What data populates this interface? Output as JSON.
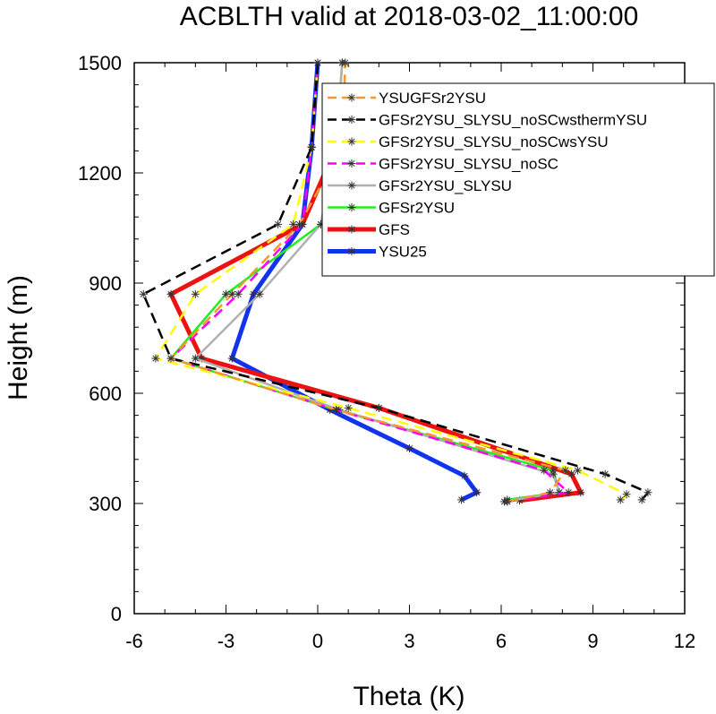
{
  "chart_data": {
    "type": "line",
    "title": "ACBLTH valid at 2018-03-02_11:00:00",
    "xlabel": "Theta (K)",
    "ylabel": "Height (m)",
    "xlim": [
      -6,
      12
    ],
    "ylim": [
      0,
      1500
    ],
    "xticks": [
      "-6",
      "-3",
      "0",
      "3",
      "6",
      "9",
      "12"
    ],
    "yticks": [
      "0",
      "300",
      "600",
      "900",
      "1200",
      "1500"
    ],
    "legend_position": "top-right",
    "marker": "asterisk",
    "series": [
      {
        "name": "YSUGFSr2YSU",
        "color": "#f29a2e",
        "dash": "dashed",
        "width": 2.5,
        "x": [
          6.2,
          7.6,
          8.1,
          0.6,
          -4.8,
          -2.8,
          -0.6,
          0.8,
          0.9
        ],
        "y": [
          305,
          330,
          390,
          555,
          695,
          870,
          1060,
          1270,
          1500
        ]
      },
      {
        "name": "GFSr2YSU_SLYSU_noSCwsthermYSU",
        "color": "#000000",
        "dash": "dashed",
        "width": 2.5,
        "x": [
          10.6,
          10.8,
          9.4,
          2.0,
          -4.8,
          -5.7,
          -1.3,
          -0.2,
          0.0
        ],
        "y": [
          310,
          330,
          380,
          560,
          695,
          870,
          1060,
          1270,
          1500
        ]
      },
      {
        "name": "GFSr2YSU_SLYSU_noSCwsYSU",
        "color": "#ffff00",
        "dash": "dashed",
        "width": 2.5,
        "x": [
          9.9,
          10.1,
          8.5,
          1.0,
          -5.3,
          -4.0,
          -0.8,
          -0.2,
          0.0
        ],
        "y": [
          310,
          325,
          390,
          560,
          695,
          870,
          1060,
          1270,
          1500
        ]
      },
      {
        "name": "GFSr2YSU_SLYSU_noSC",
        "color": "#ff00ff",
        "dash": "dashed",
        "width": 2.5,
        "x": [
          6.2,
          8.2,
          7.4,
          0.6,
          -4.8,
          -2.6,
          -0.5,
          -0.2,
          0.0
        ],
        "y": [
          305,
          330,
          390,
          555,
          695,
          870,
          1060,
          1270,
          1500
        ]
      },
      {
        "name": "GFSr2YSU_SLYSU",
        "color": "#b0b0b0",
        "dash": "solid",
        "width": 2.5,
        "x": [
          6.1,
          7.9,
          7.7,
          0.7,
          -4.0,
          -1.9,
          0.1,
          0.6,
          0.8
        ],
        "y": [
          305,
          330,
          380,
          555,
          695,
          870,
          1060,
          1270,
          1500
        ]
      },
      {
        "name": "GFSr2YSU",
        "color": "#22ee22",
        "dash": "solid",
        "width": 2.5,
        "x": [
          6.2,
          7.9,
          7.7,
          0.6,
          -4.8,
          -3.0,
          0.1,
          0.6,
          0.8
        ],
        "y": [
          310,
          330,
          390,
          555,
          695,
          870,
          1060,
          1270,
          1500
        ]
      },
      {
        "name": "GFS",
        "color": "#ee1111",
        "dash": "solid",
        "width": 5,
        "x": [
          6.6,
          8.6,
          8.3,
          2.0,
          -3.8,
          -4.8,
          -0.5,
          0.6
        ],
        "y": [
          308,
          330,
          380,
          560,
          695,
          870,
          1060,
          1270
        ]
      },
      {
        "name": "YSU25",
        "color": "#1133ee",
        "dash": "solid",
        "width": 5,
        "x": [
          4.7,
          5.2,
          4.8,
          3.0,
          0.4,
          -2.8,
          -2.1,
          -0.5,
          -0.2,
          0.0
        ],
        "y": [
          310,
          330,
          375,
          450,
          555,
          695,
          870,
          1060,
          1270,
          1500
        ]
      }
    ]
  }
}
